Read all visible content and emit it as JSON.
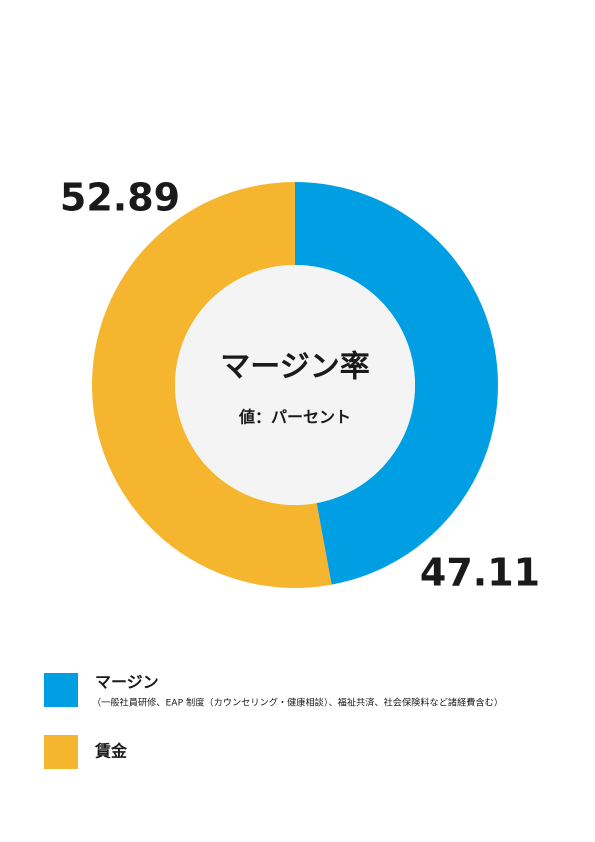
{
  "chart_data": {
    "type": "donut",
    "title": "マージン率",
    "subtitle": "値：パーセント",
    "categories": [
      "マージン",
      "賃金"
    ],
    "values": [
      47.11,
      52.89
    ],
    "colors": [
      "#009fe3",
      "#f5b52e"
    ],
    "legend_note": "（一般社員研修、EAP 制度（カウンセリング・健康相談）、福祉共済、社会保険料など諸経費含む）"
  }
}
